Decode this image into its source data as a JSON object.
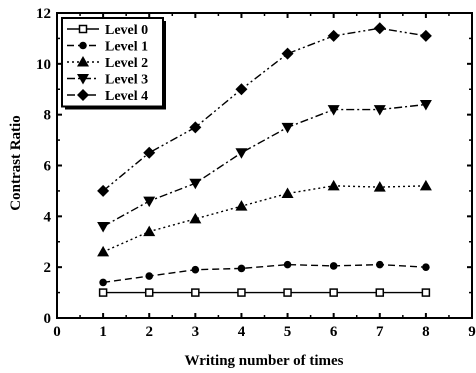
{
  "chart_data": {
    "type": "line",
    "title": "",
    "xlabel": "Writing number of times",
    "ylabel": "Contrast Ratio",
    "xlim": [
      0,
      9
    ],
    "ylim": [
      0,
      12
    ],
    "x_ticks": [
      "0",
      "1",
      "2",
      "3",
      "4",
      "5",
      "6",
      "7",
      "8",
      "9"
    ],
    "y_ticks": [
      "0",
      "2",
      "4",
      "6",
      "8",
      "10",
      "12"
    ],
    "grid": false,
    "legend_position": "top-left",
    "x": [
      1,
      2,
      3,
      4,
      5,
      6,
      7,
      8
    ],
    "series": [
      {
        "name": "Level 0",
        "marker": "open-square",
        "dash": "solid",
        "values": [
          1.0,
          1.0,
          1.0,
          1.0,
          1.0,
          1.0,
          1.0,
          1.0
        ]
      },
      {
        "name": "Level 1",
        "marker": "circle",
        "dash": "dash",
        "values": [
          1.4,
          1.65,
          1.9,
          1.95,
          2.1,
          2.05,
          2.1,
          2.0
        ]
      },
      {
        "name": "Level 2",
        "marker": "triangle-up",
        "dash": "dot",
        "values": [
          2.6,
          3.4,
          3.9,
          4.4,
          4.9,
          5.2,
          5.15,
          5.2
        ]
      },
      {
        "name": "Level 3",
        "marker": "triangle-down",
        "dash": "dash-dot",
        "values": [
          3.6,
          4.6,
          5.3,
          6.5,
          7.5,
          8.2,
          8.2,
          8.4
        ]
      },
      {
        "name": "Level 4",
        "marker": "diamond",
        "dash": "dash-dot-dot",
        "values": [
          5.0,
          6.5,
          7.5,
          9.0,
          10.4,
          11.1,
          11.4,
          11.1
        ]
      }
    ]
  }
}
